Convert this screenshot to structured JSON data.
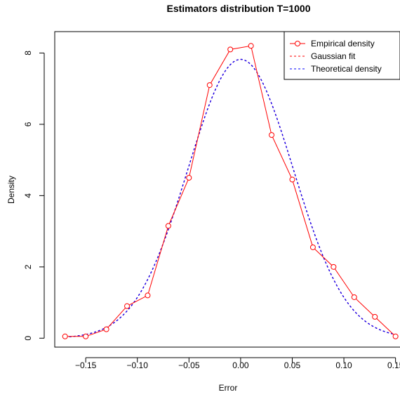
{
  "chart_data": {
    "type": "line",
    "title": "Estimators distribution T=1000",
    "xlabel": "Error",
    "ylabel": "Density",
    "xlim": [
      -0.18,
      0.155
    ],
    "ylim": [
      -0.25,
      8.6
    ],
    "x_ticks": [
      -0.15,
      -0.1,
      -0.05,
      0.0,
      0.05,
      0.1,
      0.15
    ],
    "x_tick_labels": [
      "−0.15",
      "−0.10",
      "−0.05",
      "0.00",
      "0.05",
      "0.10",
      "0.15"
    ],
    "y_ticks": [
      0,
      2,
      4,
      6,
      8
    ],
    "y_tick_labels": [
      "0",
      "2",
      "4",
      "6",
      "8"
    ],
    "grid": false,
    "legend_position": "top-right",
    "series": [
      {
        "name": "Empirical density",
        "color": "#ff0000",
        "style": "solid-line-with-open-circles",
        "x": [
          -0.17,
          -0.15,
          -0.13,
          -0.11,
          -0.09,
          -0.07,
          -0.05,
          -0.03,
          -0.01,
          0.01,
          0.03,
          0.05,
          0.07,
          0.09,
          0.11,
          0.13,
          0.15
        ],
        "y": [
          0.05,
          0.05,
          0.25,
          0.9,
          1.2,
          3.15,
          4.5,
          7.1,
          8.1,
          8.2,
          5.7,
          4.45,
          2.55,
          2.0,
          1.15,
          0.6,
          0.05
        ]
      },
      {
        "name": "Gaussian fit",
        "color": "#ff0000",
        "style": "dashed",
        "function": "normal_pdf",
        "mean": 0.0,
        "sd": 0.051
      },
      {
        "name": "Theoretical density",
        "color": "#0000ff",
        "style": "dashed",
        "function": "normal_pdf",
        "mean": 0.0,
        "sd": 0.051
      }
    ]
  }
}
